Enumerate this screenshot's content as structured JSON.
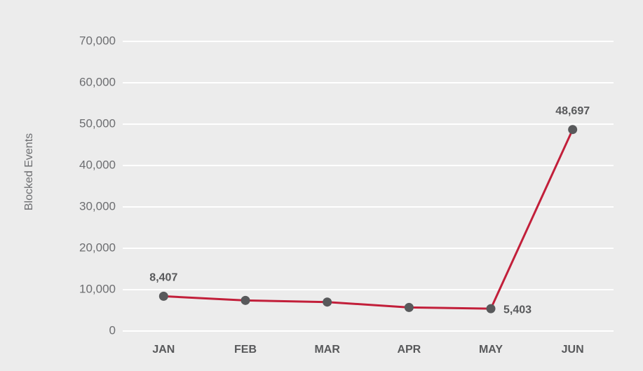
{
  "chart_data": {
    "type": "line",
    "y_label": "Blocked Events",
    "categories": [
      "JAN",
      "FEB",
      "MAR",
      "APR",
      "MAY",
      "JUN"
    ],
    "series": [
      {
        "name": "Blocked Events",
        "color": "#c21f3a",
        "values": [
          8407,
          7400,
          7000,
          5700,
          5403,
          48697
        ],
        "value_labels": [
          "8,407",
          null,
          null,
          null,
          "5,403",
          "48,697"
        ]
      }
    ],
    "marker_color": "#58595b",
    "ylim": [
      0,
      70000
    ],
    "yticks": [
      0,
      {
        "value": 10000,
        "label": "10,000"
      },
      {
        "value": 20000,
        "label": "20,000"
      },
      {
        "value": 30000,
        "label": "30,000"
      },
      {
        "value": 40000,
        "label": "40,000"
      },
      {
        "value": 50000,
        "label": "50,000"
      },
      {
        "value": 60000,
        "label": "60,000"
      },
      {
        "value": 70000,
        "label": "70,000"
      }
    ],
    "grid": true
  }
}
